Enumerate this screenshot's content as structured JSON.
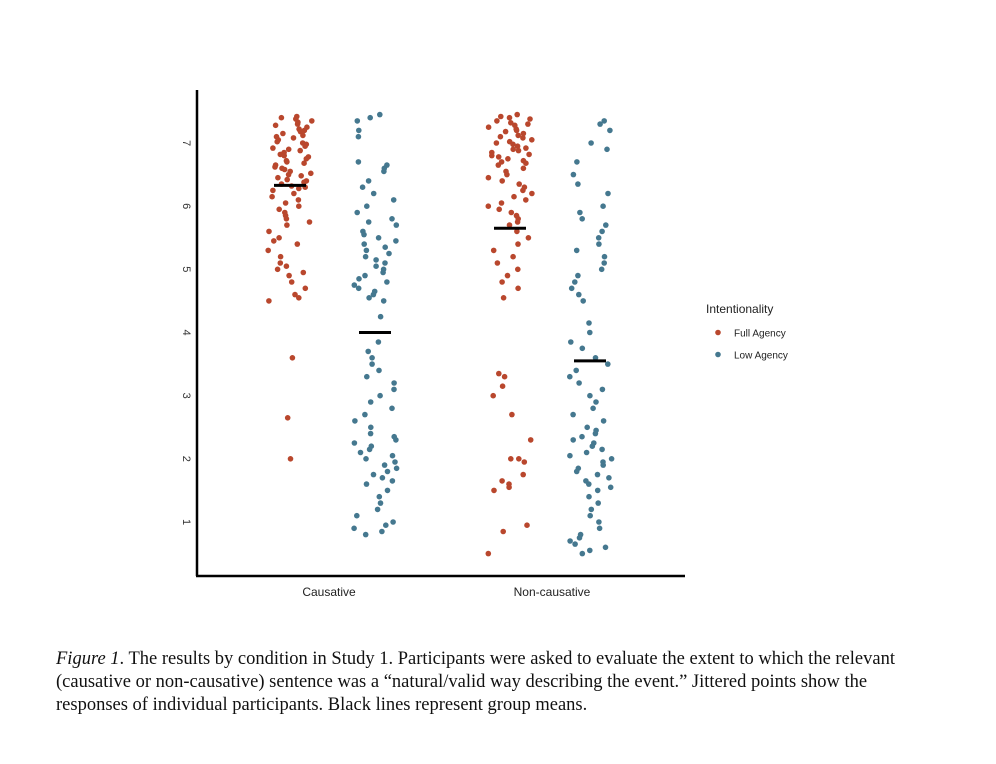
{
  "chart_data": {
    "type": "scatter",
    "subtype": "jittered strip plot with group means",
    "categories": [
      "Causative",
      "Non-causative"
    ],
    "ylim": [
      0.4,
      7.6
    ],
    "yticks": [
      1,
      2,
      3,
      4,
      5,
      6,
      7
    ],
    "xlabel": "",
    "ylabel": "",
    "legend": {
      "title": "Intentionality",
      "position": "right",
      "entries": [
        {
          "name": "Full Agency",
          "color": "#b9472d"
        },
        {
          "name": "Low Agency",
          "color": "#45788f"
        }
      ]
    },
    "series": [
      {
        "name": "Full Agency",
        "color": "#b9472d",
        "means": [
          6.33,
          5.65
        ],
        "points": [
          [
            7.42,
            7.4,
            7.38,
            7.35,
            7.33,
            7.3,
            7.28,
            7.25,
            7.22,
            7.2,
            7.18,
            7.15,
            7.12,
            7.1,
            7.08,
            7.05,
            7.02,
            7.0,
            6.98,
            6.95,
            6.92,
            6.9,
            6.88,
            6.85,
            6.82,
            6.8,
            6.78,
            6.75,
            6.72,
            6.7,
            6.68,
            6.65,
            6.62,
            6.6,
            6.58,
            6.55,
            6.52,
            6.5,
            6.48,
            6.45,
            6.42,
            6.4,
            6.38,
            6.35,
            6.32,
            6.3,
            6.28,
            6.25,
            6.2,
            6.15,
            6.1,
            6.05,
            6.0,
            5.95,
            5.9,
            5.85,
            5.8,
            5.75,
            5.7,
            5.6,
            5.5,
            5.45,
            5.4,
            5.3,
            5.2,
            5.1,
            5.05,
            5.0,
            4.95,
            4.9,
            4.8,
            4.7,
            4.6,
            4.55,
            4.5,
            3.6,
            2.65,
            2.0
          ],
          [
            7.45,
            7.42,
            7.4,
            7.38,
            7.35,
            7.32,
            7.3,
            7.28,
            7.25,
            7.22,
            7.2,
            7.18,
            7.15,
            7.12,
            7.1,
            7.08,
            7.05,
            7.02,
            7.0,
            6.98,
            6.95,
            6.92,
            6.9,
            6.88,
            6.85,
            6.82,
            6.8,
            6.78,
            6.75,
            6.72,
            6.7,
            6.68,
            6.65,
            6.6,
            6.55,
            6.5,
            6.45,
            6.4,
            6.35,
            6.3,
            6.25,
            6.2,
            6.15,
            6.1,
            6.05,
            6.0,
            5.95,
            5.9,
            5.85,
            5.8,
            5.75,
            5.7,
            5.6,
            5.5,
            5.4,
            5.3,
            5.2,
            5.1,
            5.0,
            4.9,
            4.8,
            4.7,
            4.55,
            3.3,
            3.35,
            3.15,
            3.0,
            2.7,
            2.3,
            2.0,
            2.0,
            1.95,
            1.75,
            1.65,
            1.6,
            1.55,
            1.5,
            0.95,
            0.85,
            0.5
          ]
        ]
      },
      {
        "name": "Low Agency",
        "color": "#45788f",
        "means": [
          4.0,
          3.55
        ],
        "points": [
          [
            7.45,
            7.4,
            7.35,
            7.2,
            7.1,
            6.7,
            6.65,
            6.6,
            6.55,
            6.4,
            6.3,
            6.2,
            6.1,
            6.0,
            5.9,
            5.8,
            5.75,
            5.7,
            5.6,
            5.55,
            5.5,
            5.45,
            5.4,
            5.35,
            5.3,
            5.25,
            5.2,
            5.15,
            5.1,
            5.05,
            5.0,
            4.95,
            4.9,
            4.85,
            4.8,
            4.75,
            4.7,
            4.65,
            4.6,
            4.55,
            4.5,
            4.25,
            3.85,
            3.7,
            3.6,
            3.5,
            3.4,
            3.3,
            3.2,
            3.1,
            3.0,
            2.9,
            2.8,
            2.7,
            2.6,
            2.5,
            2.4,
            2.35,
            2.3,
            2.25,
            2.2,
            2.15,
            2.1,
            2.05,
            2.0,
            1.95,
            1.9,
            1.85,
            1.8,
            1.75,
            1.7,
            1.65,
            1.6,
            1.5,
            1.4,
            1.3,
            1.2,
            1.1,
            1.0,
            0.95,
            0.9,
            0.85,
            0.8
          ],
          [
            7.35,
            7.3,
            7.2,
            7.0,
            6.9,
            6.7,
            6.5,
            6.35,
            6.2,
            6.0,
            5.9,
            5.8,
            5.7,
            5.6,
            5.5,
            5.4,
            5.3,
            5.2,
            5.1,
            5.0,
            4.9,
            4.8,
            4.7,
            4.6,
            4.5,
            4.15,
            4.0,
            3.85,
            3.75,
            3.6,
            3.5,
            3.4,
            3.3,
            3.2,
            3.1,
            3.0,
            2.9,
            2.8,
            2.7,
            2.6,
            2.5,
            2.45,
            2.4,
            2.35,
            2.3,
            2.25,
            2.2,
            2.15,
            2.1,
            2.05,
            2.0,
            1.95,
            1.9,
            1.85,
            1.8,
            1.75,
            1.7,
            1.65,
            1.6,
            1.55,
            1.5,
            1.4,
            1.3,
            1.2,
            1.1,
            1.0,
            0.9,
            0.8,
            0.75,
            0.7,
            0.65,
            0.6,
            0.55,
            0.5
          ]
        ]
      }
    ]
  },
  "caption": {
    "label": "Figure 1",
    "text": ". The results by condition in Study 1. Participants were asked to evaluate the extent to which the relevant (causative or non-causative) sentence was a “natural/valid way describing the event.” Jittered points show the responses of individual participants. Black lines represent group means."
  }
}
